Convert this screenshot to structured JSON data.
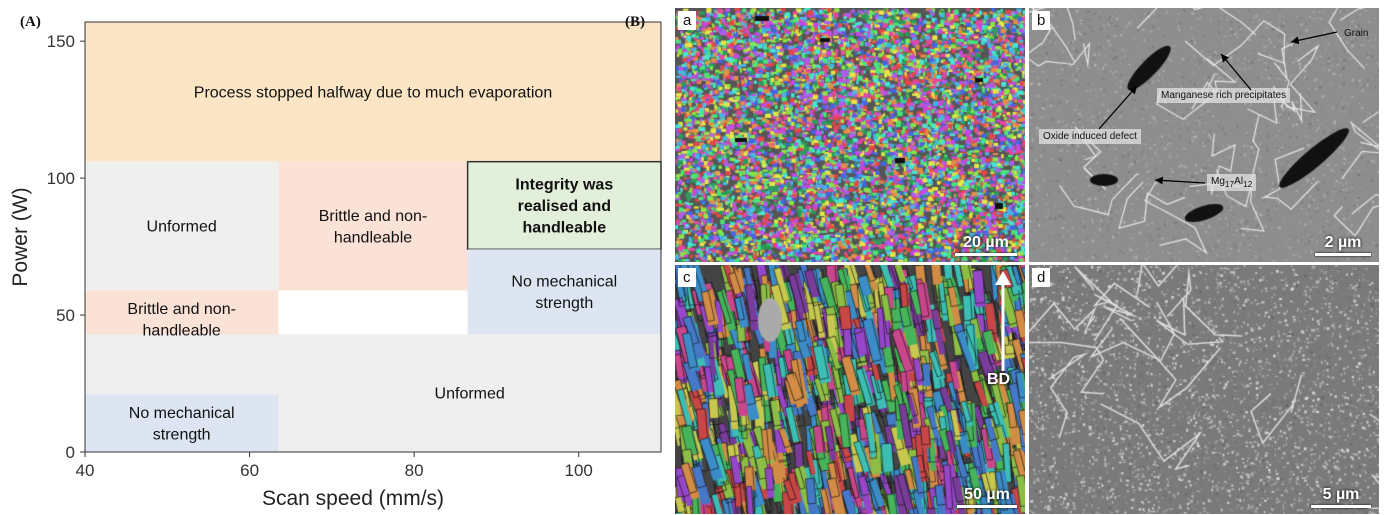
{
  "panel_labels": {
    "A": "(A)",
    "B": "(B)"
  },
  "chart_data": {
    "type": "region_map",
    "xlabel": "Scan speed (mm/s)",
    "ylabel": "Power (W)",
    "xlim": [
      40,
      110
    ],
    "ylim": [
      0,
      157
    ],
    "xticks": [
      40,
      60,
      80,
      100
    ],
    "yticks": [
      0,
      50,
      100,
      150
    ],
    "regions": [
      {
        "label": "Process stopped halfway due to much evaporation",
        "x": [
          40,
          110
        ],
        "y": [
          106,
          157
        ],
        "color": "#fbe5c4",
        "bold": false
      },
      {
        "label": "Unformed",
        "x": [
          40,
          63.5
        ],
        "y": [
          59,
          106
        ],
        "color": "#efefef",
        "bold": false
      },
      {
        "label": "Brittle and non-handleable",
        "x": [
          63.5,
          86.5
        ],
        "y": [
          59,
          106
        ],
        "color": "#fbe2d7",
        "bold": false
      },
      {
        "label": "Integrity was realised and handleable",
        "x": [
          86.5,
          110
        ],
        "y": [
          74,
          106
        ],
        "color": "#e2efda",
        "bold": true,
        "border": "#333333"
      },
      {
        "label": "No mechanical strength",
        "x": [
          86.5,
          110
        ],
        "y": [
          43,
          74
        ],
        "color": "#dce5f1",
        "bold": false
      },
      {
        "label": "Brittle and non-handleable",
        "x": [
          40,
          63.5
        ],
        "y": [
          38,
          59
        ],
        "color": "#fbe2d7",
        "bold": false
      },
      {
        "label": "Unformed",
        "x": [
          40,
          110
        ],
        "y": [
          0,
          43
        ],
        "color": "#efefef",
        "bold": false
      },
      {
        "label": "No mechanical strength",
        "x": [
          40,
          63.5
        ],
        "y": [
          0,
          21
        ],
        "color": "#dce5f1",
        "bold": false
      }
    ]
  },
  "micrographs": {
    "a": {
      "label": "a",
      "scale": "20 µm"
    },
    "b": {
      "label": "b",
      "scale": "2 µm",
      "annotations": {
        "grain": "Grain",
        "manganese": "Manganese rich precipitates",
        "oxide": "Oxide induced defect",
        "mg_base": "Mg",
        "mg_sub1": "17",
        "mg_al": "Al",
        "mg_sub2": "12"
      }
    },
    "c": {
      "label": "c",
      "scale": "50 µm",
      "direction": "BD"
    },
    "d": {
      "label": "d",
      "scale": "5 µm"
    }
  }
}
